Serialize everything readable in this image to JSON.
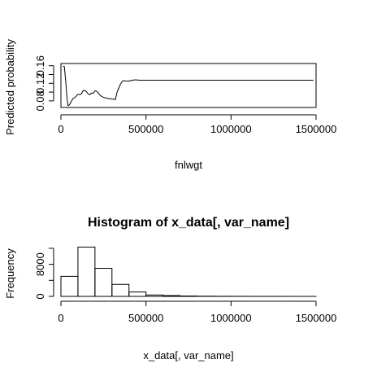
{
  "chart_data": [
    {
      "type": "line",
      "title": "",
      "xlabel": "fnlwgt",
      "ylabel": "Predicted probability",
      "xlim": [
        0,
        1500000
      ],
      "ylim": [
        0.065,
        0.165
      ],
      "x_ticks": [
        0,
        500000,
        1000000,
        1500000
      ],
      "x_tick_labels": [
        "0",
        "500000",
        "1000000",
        "1500000"
      ],
      "y_ticks": [
        0.08,
        0.12,
        0.16
      ],
      "y_tick_labels": [
        "0.08",
        "0.12",
        "0.16"
      ],
      "series": [
        {
          "x": [
            12285,
            20000,
            28000,
            36000,
            42000,
            50000,
            60000,
            70000,
            80000,
            90000,
            100000,
            110000,
            120000,
            130000,
            140000,
            150000,
            160000,
            170000,
            180000,
            190000,
            200000,
            210000,
            220000,
            230000,
            240000,
            250000,
            260000,
            270000,
            280000,
            290000,
            300000,
            310000,
            320000,
            330000,
            340000,
            350000,
            360000,
            370000,
            380000,
            400000,
            420000,
            440000,
            460000,
            500000,
            600000,
            800000,
            1000000,
            1200000,
            1484705
          ],
          "y": [
            0.159,
            0.158,
            0.125,
            0.085,
            0.069,
            0.071,
            0.078,
            0.085,
            0.087,
            0.091,
            0.095,
            0.094,
            0.096,
            0.103,
            0.104,
            0.101,
            0.096,
            0.094,
            0.098,
            0.097,
            0.103,
            0.102,
            0.098,
            0.093,
            0.09,
            0.088,
            0.087,
            0.086,
            0.085,
            0.085,
            0.084,
            0.084,
            0.083,
            0.1,
            0.109,
            0.118,
            0.124,
            0.126,
            0.125,
            0.125,
            0.127,
            0.128,
            0.127,
            0.127,
            0.127,
            0.127,
            0.127,
            0.127,
            0.127
          ]
        }
      ]
    },
    {
      "type": "bar",
      "title": "Histogram of x_data[, var_name]",
      "xlabel": "x_data[, var_name]",
      "ylabel": "Frequency",
      "xlim": [
        0,
        1500000
      ],
      "ylim": [
        0,
        13000
      ],
      "x_ticks": [
        0,
        500000,
        1000000,
        1500000
      ],
      "x_tick_labels": [
        "0",
        "500000",
        "1000000",
        "1500000"
      ],
      "y_ticks": [
        0,
        8000
      ],
      "y_tick_labels": [
        "0",
        "8000"
      ],
      "bin_edges": [
        0,
        100000,
        200000,
        300000,
        400000,
        500000,
        600000,
        700000,
        800000,
        900000,
        1000000,
        1100000,
        1200000,
        1300000,
        1400000,
        1500000
      ],
      "values": [
        5000,
        12300,
        7000,
        3000,
        1100,
        350,
        200,
        100,
        50,
        30,
        20,
        10,
        8,
        5,
        3
      ]
    }
  ]
}
